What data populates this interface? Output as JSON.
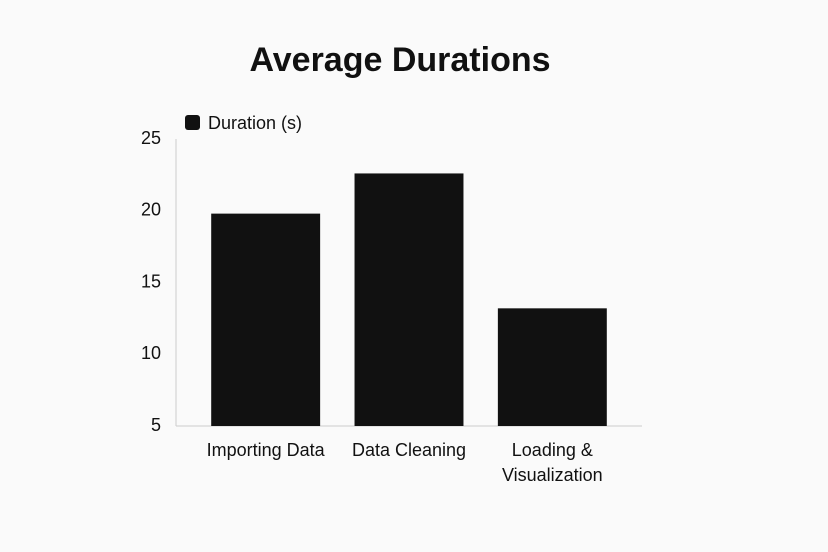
{
  "chart_data": {
    "type": "bar",
    "title": "Average Durations",
    "categories": [
      "Importing Data",
      "Data Cleaning",
      "Loading & Visualization"
    ],
    "series": [
      {
        "name": "Duration (s)",
        "color": "#111111",
        "values": [
          19.8,
          22.6,
          13.2
        ]
      }
    ],
    "ylim": [
      5,
      25
    ],
    "yticks": [
      5,
      10,
      15,
      20,
      25
    ],
    "grid": false,
    "legend": "top-left"
  }
}
